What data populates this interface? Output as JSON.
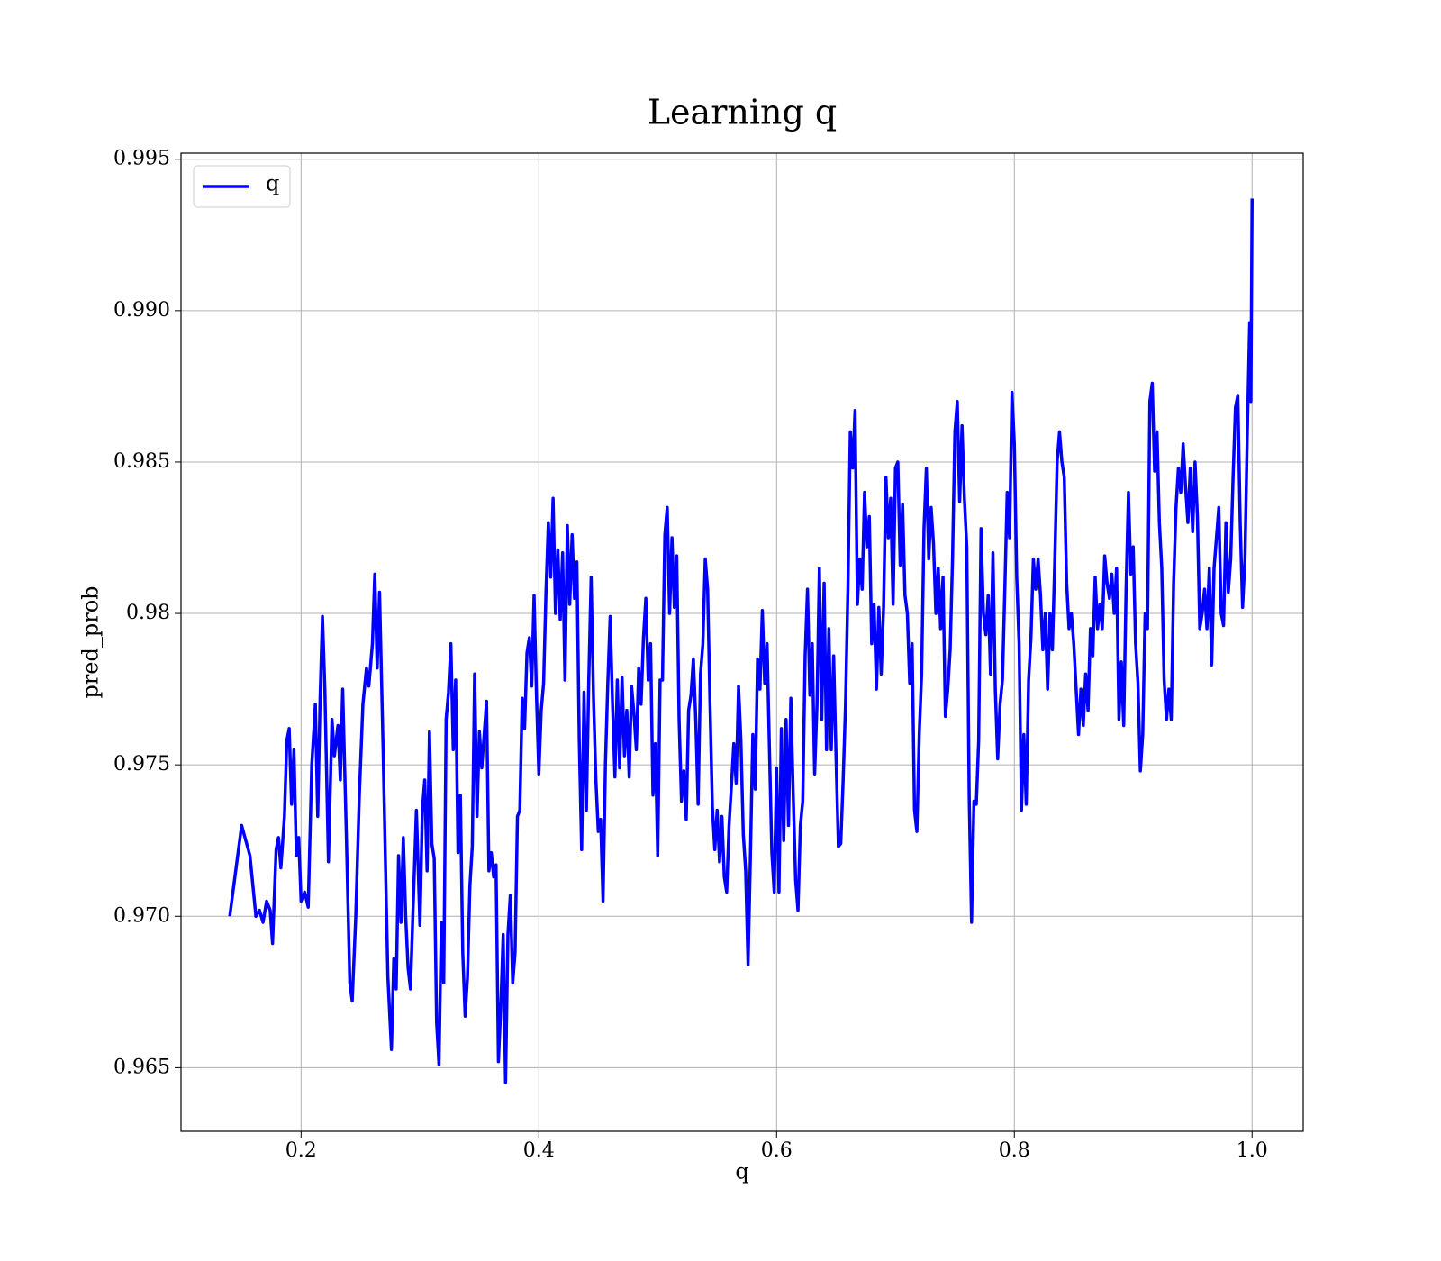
{
  "chart_data": {
    "type": "line",
    "title": "Learning q",
    "x_label": "q",
    "y_label": "pred_prob",
    "xlim": [
      0.099,
      1.043
    ],
    "ylim": [
      0.9629,
      0.9952
    ],
    "xticks": [
      0.2,
      0.4,
      0.6,
      0.8,
      {
        "value": 1,
        "label": "1.0"
      }
    ],
    "yticks": [
      0.965,
      {
        "value": 0.97,
        "label": "0.970"
      },
      0.975,
      0.98,
      0.985,
      {
        "value": 0.99,
        "label": "0.990"
      },
      0.995
    ],
    "grid": true,
    "legend": "upper left",
    "x": [
      0.14,
      0.15,
      0.157,
      0.162,
      0.165,
      0.168,
      0.171,
      0.174,
      0.176,
      0.179,
      0.181,
      0.183,
      0.186,
      0.188,
      0.19,
      0.192,
      0.194,
      0.196,
      0.198,
      0.2,
      0.203,
      0.206,
      0.209,
      0.212,
      0.214,
      0.216,
      0.218,
      0.22,
      0.223,
      0.226,
      0.228,
      0.231,
      0.233,
      0.235,
      0.238,
      0.241,
      0.243,
      0.246,
      0.249,
      0.252,
      0.255,
      0.257,
      0.26,
      0.262,
      0.264,
      0.266,
      0.269,
      0.271,
      0.273,
      0.276,
      0.278,
      0.28,
      0.282,
      0.284,
      0.286,
      0.288,
      0.29,
      0.292,
      0.294,
      0.297,
      0.3,
      0.302,
      0.304,
      0.306,
      0.308,
      0.31,
      0.312,
      0.314,
      0.316,
      0.318,
      0.32,
      0.322,
      0.324,
      0.326,
      0.328,
      0.33,
      0.332,
      0.334,
      0.336,
      0.338,
      0.34,
      0.342,
      0.344,
      0.346,
      0.348,
      0.35,
      0.352,
      0.354,
      0.356,
      0.358,
      0.36,
      0.362,
      0.364,
      0.366,
      0.368,
      0.37,
      0.372,
      0.374,
      0.376,
      0.378,
      0.38,
      0.382,
      0.384,
      0.386,
      0.388,
      0.39,
      0.392,
      0.394,
      0.396,
      0.398,
      0.4,
      0.402,
      0.404,
      0.406,
      0.408,
      0.41,
      0.412,
      0.414,
      0.416,
      0.418,
      0.42,
      0.422,
      0.424,
      0.426,
      0.428,
      0.43,
      0.432,
      0.434,
      0.436,
      0.438,
      0.44,
      0.442,
      0.444,
      0.446,
      0.448,
      0.45,
      0.452,
      0.454,
      0.456,
      0.458,
      0.46,
      0.462,
      0.464,
      0.466,
      0.468,
      0.47,
      0.472,
      0.474,
      0.476,
      0.478,
      0.48,
      0.482,
      0.484,
      0.486,
      0.488,
      0.49,
      0.492,
      0.494,
      0.496,
      0.498,
      0.5,
      0.502,
      0.504,
      0.506,
      0.508,
      0.51,
      0.512,
      0.514,
      0.516,
      0.518,
      0.52,
      0.522,
      0.524,
      0.526,
      0.528,
      0.53,
      0.532,
      0.534,
      0.536,
      0.538,
      0.54,
      0.542,
      0.544,
      0.546,
      0.548,
      0.55,
      0.552,
      0.554,
      0.556,
      0.558,
      0.56,
      0.562,
      0.564,
      0.566,
      0.568,
      0.57,
      0.572,
      0.574,
      0.576,
      0.578,
      0.58,
      0.582,
      0.584,
      0.586,
      0.588,
      0.59,
      0.592,
      0.594,
      0.596,
      0.598,
      0.6,
      0.602,
      0.604,
      0.606,
      0.608,
      0.61,
      0.612,
      0.614,
      0.616,
      0.618,
      0.62,
      0.622,
      0.624,
      0.626,
      0.628,
      0.63,
      0.632,
      0.634,
      0.636,
      0.638,
      0.64,
      0.642,
      0.644,
      0.646,
      0.648,
      0.65,
      0.652,
      0.654,
      0.656,
      0.658,
      0.66,
      0.662,
      0.664,
      0.666,
      0.668,
      0.67,
      0.672,
      0.674,
      0.676,
      0.678,
      0.68,
      0.682,
      0.684,
      0.686,
      0.688,
      0.69,
      0.692,
      0.694,
      0.696,
      0.698,
      0.7,
      0.702,
      0.704,
      0.706,
      0.708,
      0.71,
      0.712,
      0.714,
      0.716,
      0.718,
      0.72,
      0.722,
      0.724,
      0.726,
      0.728,
      0.73,
      0.732,
      0.734,
      0.736,
      0.738,
      0.74,
      0.742,
      0.744,
      0.746,
      0.748,
      0.75,
      0.752,
      0.754,
      0.756,
      0.758,
      0.76,
      0.762,
      0.764,
      0.766,
      0.768,
      0.77,
      0.772,
      0.774,
      0.776,
      0.778,
      0.78,
      0.782,
      0.784,
      0.786,
      0.788,
      0.79,
      0.792,
      0.794,
      0.796,
      0.798,
      0.8,
      0.802,
      0.804,
      0.806,
      0.808,
      0.81,
      0.812,
      0.814,
      0.816,
      0.818,
      0.82,
      0.822,
      0.824,
      0.826,
      0.828,
      0.83,
      0.832,
      0.834,
      0.836,
      0.838,
      0.84,
      0.842,
      0.844,
      0.846,
      0.848,
      0.85,
      0.852,
      0.854,
      0.856,
      0.858,
      0.86,
      0.862,
      0.864,
      0.866,
      0.868,
      0.87,
      0.872,
      0.874,
      0.876,
      0.878,
      0.88,
      0.882,
      0.884,
      0.886,
      0.888,
      0.89,
      0.892,
      0.894,
      0.896,
      0.898,
      0.9,
      0.902,
      0.904,
      0.906,
      0.908,
      0.91,
      0.912,
      0.914,
      0.916,
      0.918,
      0.92,
      0.922,
      0.924,
      0.926,
      0.928,
      0.93,
      0.932,
      0.934,
      0.936,
      0.938,
      0.94,
      0.942,
      0.944,
      0.946,
      0.948,
      0.95,
      0.952,
      0.954,
      0.956,
      0.958,
      0.96,
      0.962,
      0.964,
      0.966,
      0.968,
      0.97,
      0.972,
      0.974,
      0.976,
      0.978,
      0.98,
      0.982,
      0.984,
      0.986,
      0.988,
      0.99,
      0.992,
      0.994,
      0.996,
      0.998,
      0.999,
      1.0
    ],
    "series": [
      {
        "name": "q",
        "color": "#0000ff",
        "values": [
          0.97,
          0.973,
          0.972,
          0.97,
          0.9702,
          0.9698,
          0.9705,
          0.9702,
          0.9691,
          0.9722,
          0.9726,
          0.9716,
          0.9733,
          0.9758,
          0.9762,
          0.9737,
          0.9755,
          0.972,
          0.9726,
          0.9705,
          0.9708,
          0.9703,
          0.975,
          0.977,
          0.9733,
          0.9772,
          0.9799,
          0.9775,
          0.9718,
          0.9765,
          0.9753,
          0.9763,
          0.9745,
          0.9775,
          0.9728,
          0.9678,
          0.9672,
          0.97,
          0.974,
          0.977,
          0.9782,
          0.9776,
          0.979,
          0.9813,
          0.9782,
          0.9807,
          0.9755,
          0.9717,
          0.968,
          0.9656,
          0.9686,
          0.9676,
          0.972,
          0.9698,
          0.9726,
          0.97,
          0.9683,
          0.9676,
          0.97,
          0.9735,
          0.9697,
          0.9735,
          0.9745,
          0.9715,
          0.9761,
          0.9724,
          0.9719,
          0.9665,
          0.9651,
          0.9698,
          0.9678,
          0.9765,
          0.9774,
          0.979,
          0.9755,
          0.9778,
          0.9721,
          0.974,
          0.9688,
          0.9667,
          0.968,
          0.971,
          0.9723,
          0.978,
          0.9733,
          0.9761,
          0.9749,
          0.976,
          0.9771,
          0.9715,
          0.9721,
          0.9713,
          0.9717,
          0.9652,
          0.967,
          0.9694,
          0.9645,
          0.9694,
          0.9707,
          0.9678,
          0.9688,
          0.9733,
          0.9735,
          0.9772,
          0.9762,
          0.9787,
          0.9792,
          0.9776,
          0.9806,
          0.9773,
          0.9747,
          0.9768,
          0.9777,
          0.9807,
          0.983,
          0.9812,
          0.9838,
          0.98,
          0.9821,
          0.9798,
          0.982,
          0.9778,
          0.9829,
          0.9803,
          0.9826,
          0.9805,
          0.9817,
          0.9758,
          0.9722,
          0.9774,
          0.9735,
          0.9778,
          0.9812,
          0.9772,
          0.9745,
          0.9728,
          0.9732,
          0.9705,
          0.975,
          0.9777,
          0.9799,
          0.977,
          0.9746,
          0.9778,
          0.9749,
          0.9779,
          0.9753,
          0.9768,
          0.9746,
          0.9776,
          0.9767,
          0.9755,
          0.9782,
          0.977,
          0.9792,
          0.9805,
          0.9778,
          0.979,
          0.974,
          0.9757,
          0.972,
          0.9778,
          0.9778,
          0.9826,
          0.9835,
          0.98,
          0.9825,
          0.9802,
          0.9819,
          0.9765,
          0.9738,
          0.9748,
          0.9732,
          0.9768,
          0.9773,
          0.9785,
          0.9765,
          0.9737,
          0.978,
          0.979,
          0.9818,
          0.9808,
          0.977,
          0.9736,
          0.9722,
          0.9735,
          0.9718,
          0.9733,
          0.9713,
          0.9708,
          0.973,
          0.9743,
          0.9757,
          0.9744,
          0.9776,
          0.9758,
          0.9727,
          0.9715,
          0.9684,
          0.972,
          0.976,
          0.9742,
          0.9785,
          0.9775,
          0.9801,
          0.9777,
          0.979,
          0.9755,
          0.9721,
          0.9708,
          0.9749,
          0.9708,
          0.9762,
          0.9725,
          0.9765,
          0.973,
          0.9772,
          0.974,
          0.9712,
          0.9702,
          0.973,
          0.9738,
          0.9786,
          0.9808,
          0.9773,
          0.979,
          0.9747,
          0.977,
          0.9815,
          0.9765,
          0.981,
          0.9755,
          0.9795,
          0.9755,
          0.9786,
          0.9753,
          0.9723,
          0.9724,
          0.9745,
          0.977,
          0.9808,
          0.986,
          0.9848,
          0.9867,
          0.9803,
          0.9818,
          0.9808,
          0.984,
          0.9822,
          0.9832,
          0.979,
          0.9803,
          0.9775,
          0.9802,
          0.978,
          0.9802,
          0.9845,
          0.9825,
          0.9838,
          0.9803,
          0.9848,
          0.985,
          0.9816,
          0.9836,
          0.9806,
          0.98,
          0.9777,
          0.979,
          0.9735,
          0.9728,
          0.976,
          0.978,
          0.9828,
          0.9848,
          0.9818,
          0.9835,
          0.9823,
          0.98,
          0.9815,
          0.9795,
          0.9812,
          0.9766,
          0.9775,
          0.9788,
          0.9818,
          0.986,
          0.987,
          0.9837,
          0.9862,
          0.9838,
          0.9822,
          0.974,
          0.9698,
          0.9738,
          0.9737,
          0.9758,
          0.9828,
          0.98,
          0.9793,
          0.9806,
          0.978,
          0.982,
          0.9775,
          0.9752,
          0.977,
          0.9778,
          0.9808,
          0.984,
          0.9825,
          0.9873,
          0.9856,
          0.9812,
          0.979,
          0.9735,
          0.976,
          0.9737,
          0.9778,
          0.9792,
          0.9818,
          0.9808,
          0.9818,
          0.9806,
          0.9788,
          0.98,
          0.9775,
          0.98,
          0.9788,
          0.9817,
          0.985,
          0.986,
          0.985,
          0.9845,
          0.981,
          0.9795,
          0.98,
          0.979,
          0.9775,
          0.976,
          0.9775,
          0.9763,
          0.978,
          0.9768,
          0.9795,
          0.9786,
          0.9812,
          0.9795,
          0.9803,
          0.9795,
          0.9819,
          0.981,
          0.9805,
          0.9813,
          0.98,
          0.9815,
          0.9765,
          0.9784,
          0.9763,
          0.9808,
          0.984,
          0.9813,
          0.9822,
          0.979,
          0.9777,
          0.9748,
          0.976,
          0.98,
          0.9795,
          0.987,
          0.9876,
          0.9847,
          0.986,
          0.983,
          0.9815,
          0.9778,
          0.9765,
          0.9775,
          0.9765,
          0.981,
          0.9835,
          0.9848,
          0.984,
          0.9856,
          0.9842,
          0.983,
          0.9848,
          0.9827,
          0.985,
          0.9832,
          0.9795,
          0.98,
          0.9808,
          0.9795,
          0.9815,
          0.9783,
          0.9815,
          0.9825,
          0.9835,
          0.98,
          0.9796,
          0.983,
          0.9807,
          0.9818,
          0.9845,
          0.9868,
          0.9872,
          0.983,
          0.9802,
          0.9818,
          0.986,
          0.9896,
          0.987,
          0.9937
        ]
      }
    ]
  }
}
